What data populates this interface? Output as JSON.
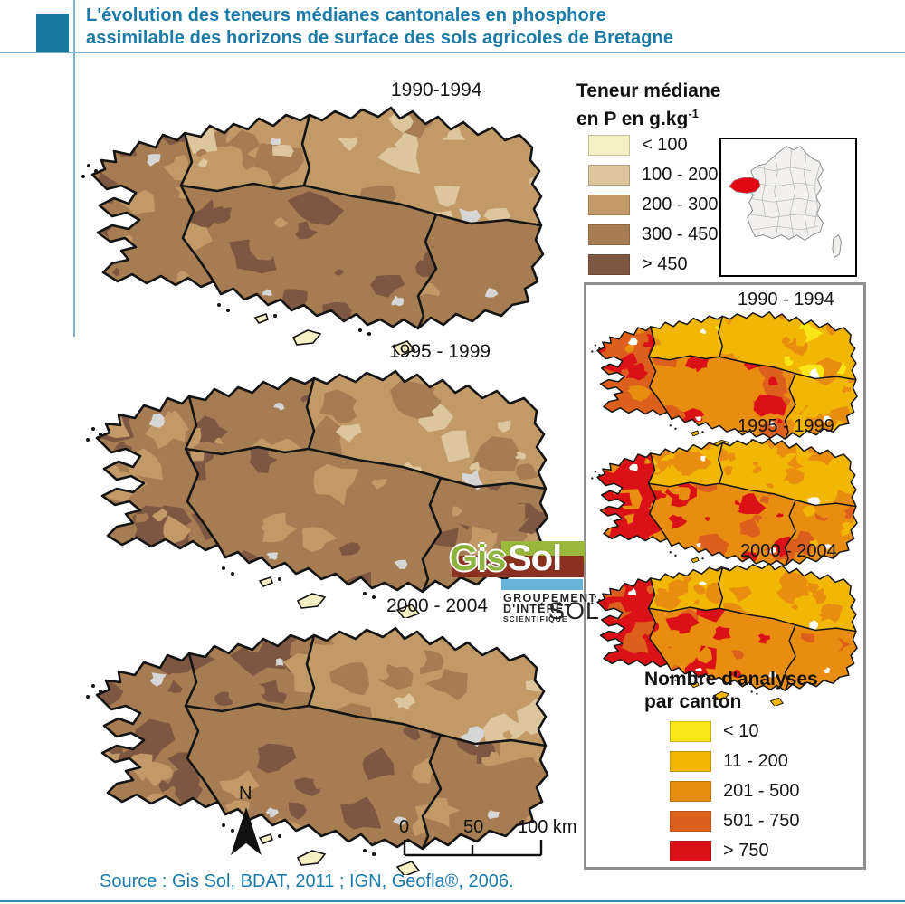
{
  "header": {
    "title_line1": "L'évolution des teneurs médianes cantonales en phosphore",
    "title_line2": "assimilable des horizons de surface des sols agricoles de Bretagne",
    "accent_color": "#1a7aa8"
  },
  "maps_phosphorus": {
    "labels": [
      "1990-1994",
      "1995 - 1999",
      "2000 - 2004"
    ]
  },
  "legend_phosphorus": {
    "title_line1": "Teneur médiane",
    "title_line2": "en P en g.kg",
    "title_superscript": "-1",
    "classes": [
      {
        "label": "< 100",
        "color": "#f7f0c5"
      },
      {
        "label": "100 - 200",
        "color": "#ddc69c"
      },
      {
        "label": "200 - 300",
        "color": "#c19a68"
      },
      {
        "label": "300 - 450",
        "color": "#a67c52"
      },
      {
        "label": "> 450",
        "color": "#7d5741"
      }
    ]
  },
  "panel_analyses": {
    "labels": [
      "1990 - 1994",
      "1995 - 1999",
      "2000 - 2004"
    ],
    "legend_title_line1": "Nombre d'analyses",
    "legend_title_line2": "par canton",
    "classes": [
      {
        "label": "< 10",
        "color": "#fae617"
      },
      {
        "label": "11 - 200",
        "color": "#f2b705"
      },
      {
        "label": "201 - 500",
        "color": "#e98d10"
      },
      {
        "label": "501 - 750",
        "color": "#dd5f1c"
      },
      {
        "label": "> 750",
        "color": "#da1217"
      }
    ]
  },
  "inset_france": {
    "land_color": "#f1f0ee",
    "border_color": "#8a8a8a",
    "highlight_color": "#e30613"
  },
  "logo": {
    "gis": "Gis",
    "sol": "Sol",
    "caption_line1": "GROUPEMENT",
    "caption_line2": "D'INTÉRÊT",
    "caption_line3": "SCIENTIFIQUE",
    "sol_caps": "SOL",
    "green": "#9ab93c",
    "red": "#8c3120",
    "blue": "#68b4d8"
  },
  "north_arrow_label": "N",
  "scalebar": {
    "zero": "0",
    "fifty": "50",
    "hundred": "100 km"
  },
  "source_text": "Source : Gis Sol, BDAT, 2011 ; IGN, Geofla®, 2006.",
  "map_misc": {
    "urban_color": "#d6d6d6",
    "coast_color": "#141414"
  }
}
